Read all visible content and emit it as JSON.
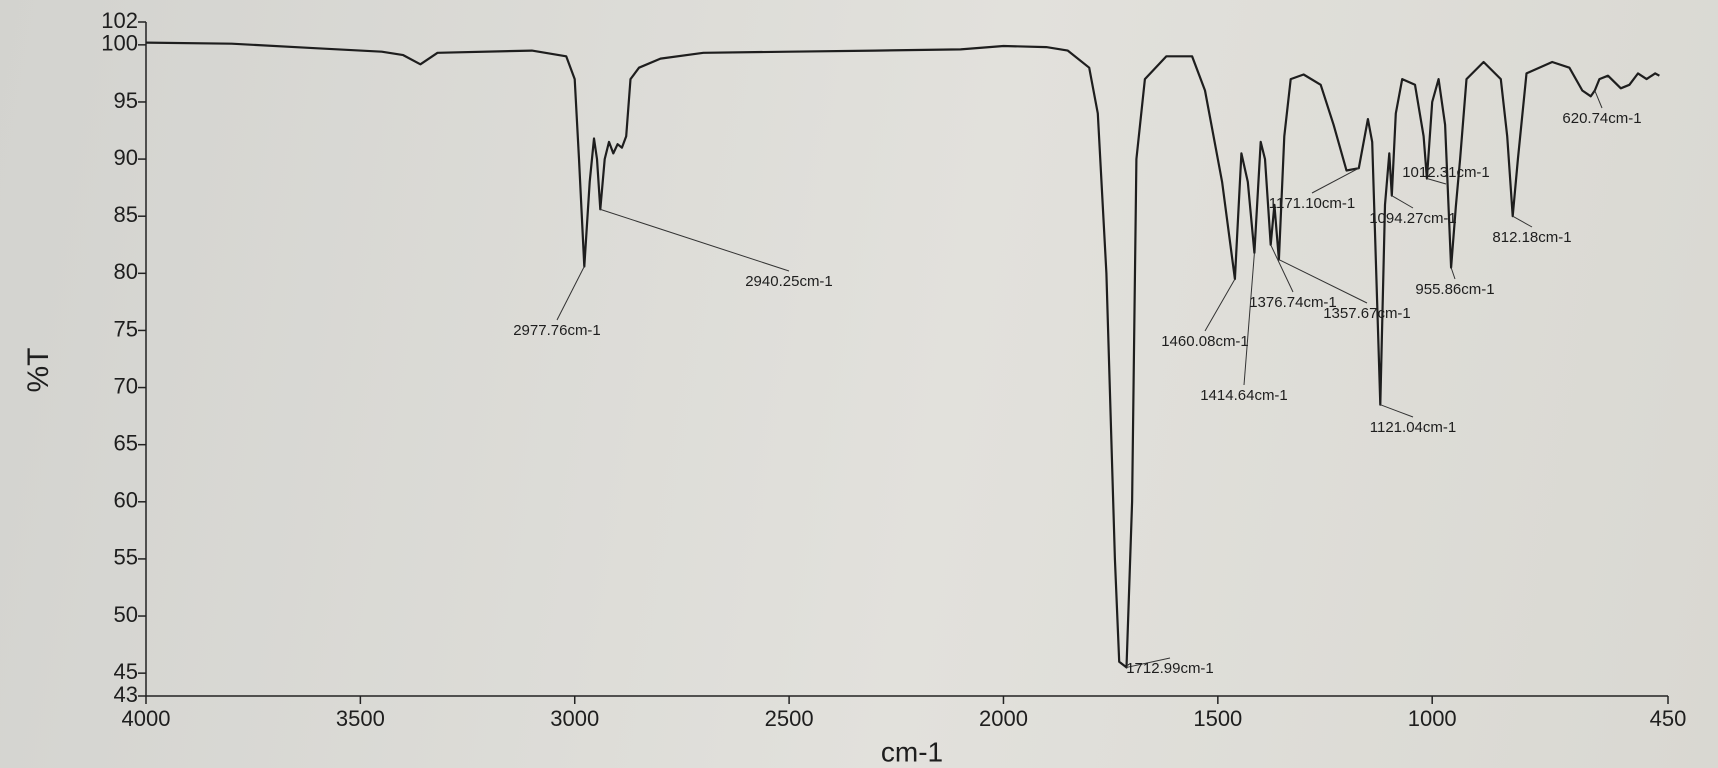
{
  "chart_data": {
    "type": "line",
    "xlabel": "cm-1",
    "ylabel": "%T",
    "color": "#1e1e1e",
    "x": [
      4000,
      3800,
      3600,
      3450,
      3400,
      3360,
      3320,
      3100,
      3020,
      3000,
      2990,
      2977.76,
      2965,
      2955,
      2948,
      2940.25,
      2930,
      2920,
      2910,
      2900,
      2890,
      2880,
      2870,
      2850,
      2800,
      2700,
      2500,
      2300,
      2100,
      2000,
      1900,
      1850,
      1800,
      1780,
      1760,
      1740,
      1730,
      1712.99,
      1700,
      1690,
      1670,
      1620,
      1560,
      1530,
      1490,
      1460.08,
      1445,
      1430,
      1414.64,
      1400,
      1390,
      1376.74,
      1368,
      1357.67,
      1345,
      1330,
      1300,
      1260,
      1230,
      1200,
      1171.1,
      1150,
      1140,
      1121.04,
      1110,
      1100,
      1094.27,
      1085,
      1070,
      1040,
      1020,
      1012.31,
      1000,
      985,
      970,
      955.86,
      945,
      935,
      920,
      880,
      840,
      825,
      812.18,
      800,
      780,
      720,
      680,
      650,
      630,
      620.74,
      610,
      590,
      560,
      540,
      520,
      500,
      480,
      470
    ],
    "values": [
      100.2,
      100.1,
      99.7,
      99.4,
      99.1,
      98.3,
      99.3,
      99.5,
      99,
      97,
      90,
      80.6,
      88,
      91.8,
      90,
      85.6,
      90,
      91.5,
      90.5,
      91.3,
      91,
      92,
      97,
      98,
      98.8,
      99.3,
      99.4,
      99.5,
      99.6,
      99.9,
      99.8,
      99.5,
      98,
      94,
      80,
      55,
      46,
      45.5,
      60,
      90,
      97,
      99,
      99,
      96,
      88,
      79.5,
      90.5,
      88,
      81.8,
      91.5,
      90,
      82.5,
      86,
      81.2,
      92,
      97,
      97.4,
      96.5,
      93,
      89,
      89.2,
      93.5,
      91.5,
      68.5,
      86,
      90.5,
      86.8,
      94,
      97,
      96.5,
      92,
      88.3,
      95,
      97,
      93,
      80.5,
      85.8,
      90,
      97,
      98.5,
      97,
      92,
      85,
      90,
      97.5,
      98.5,
      98,
      96,
      95.5,
      96,
      97,
      97.3,
      96.2,
      96.5,
      97.5,
      97,
      97.5,
      97.3
    ],
    "xlim": [
      4000,
      450
    ],
    "ylim": [
      43,
      102
    ],
    "xticks": [
      4000,
      3500,
      3000,
      2500,
      2000,
      1500,
      1000,
      450
    ],
    "yticks": [
      43,
      45,
      50,
      55,
      60,
      65,
      70,
      75,
      80,
      85,
      90,
      95,
      100,
      102
    ],
    "annotations": [
      {
        "text": "2977.76cm-1",
        "x": 2977.76,
        "y": 80.6
      },
      {
        "text": "2940.25cm-1",
        "x": 2940.25,
        "y": 85.6
      },
      {
        "text": "1712.99cm-1",
        "x": 1712.99,
        "y": 45.5
      },
      {
        "text": "1460.08cm-1",
        "x": 1460.08,
        "y": 79.5
      },
      {
        "text": "1414.64cm-1",
        "x": 1414.64,
        "y": 81.8
      },
      {
        "text": "1376.74cm-1",
        "x": 1376.74,
        "y": 82.5
      },
      {
        "text": "1357.67cm-1",
        "x": 1357.67,
        "y": 81.2
      },
      {
        "text": "1171.10cm-1",
        "x": 1171.1,
        "y": 89.2
      },
      {
        "text": "1121.04cm-1",
        "x": 1121.04,
        "y": 68.5
      },
      {
        "text": "1094.27cm-1",
        "x": 1094.27,
        "y": 86.8
      },
      {
        "text": "1012.31cm-1",
        "x": 1012.31,
        "y": 88.3
      },
      {
        "text": "955.86cm-1",
        "x": 955.86,
        "y": 80.5
      },
      {
        "text": "812.18cm-1",
        "x": 812.18,
        "y": 85
      },
      {
        "text": "620.74cm-1",
        "x": 620.74,
        "y": 96
      }
    ]
  }
}
